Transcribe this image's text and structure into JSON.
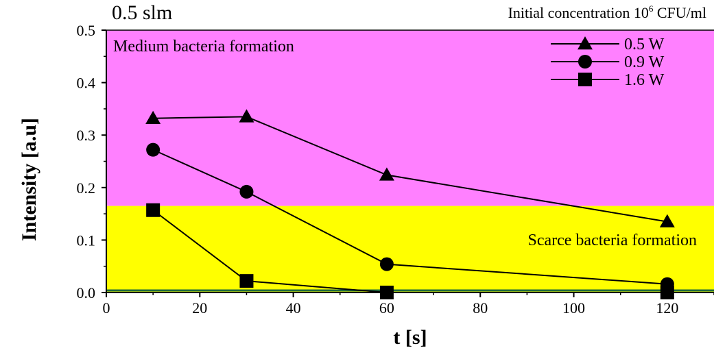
{
  "chart_data": {
    "type": "line",
    "corner_label": "0.5 slm",
    "title": "Initial concentration 10",
    "title_superscript": "6",
    "title_suffix": " CFU/ml",
    "xlabel": "t  [s]",
    "ylabel": "Intensity [a.u]",
    "xlim": [
      0,
      130
    ],
    "ylim": [
      0,
      0.5
    ],
    "xticks": [
      0,
      20,
      40,
      60,
      80,
      100,
      120
    ],
    "yticks": [
      0.0,
      0.1,
      0.2,
      0.3,
      0.4,
      0.5
    ],
    "ytick_labels": [
      "0.0",
      "0.1",
      "0.2",
      "0.3",
      "0.4",
      "0.5"
    ],
    "regions": [
      {
        "label": "Medium bacteria formation",
        "y_range": [
          0.165,
          0.5
        ],
        "color": "#ff80ff"
      },
      {
        "label": "Scarce bacteria formation",
        "y_range": [
          0.0,
          0.165
        ],
        "color": "#ffff00"
      }
    ],
    "legend_position": "top-right",
    "series": [
      {
        "name": "0.5 W",
        "marker": "triangle",
        "x": [
          10,
          30,
          60,
          120
        ],
        "y": [
          0.332,
          0.335,
          0.224,
          0.135
        ]
      },
      {
        "name": "0.9 W",
        "marker": "circle",
        "x": [
          10,
          30,
          60,
          120
        ],
        "y": [
          0.272,
          0.192,
          0.054,
          0.016
        ]
      },
      {
        "name": "1.6 W",
        "marker": "square",
        "x": [
          10,
          30,
          60,
          120
        ],
        "y": [
          0.157,
          0.022,
          0.0,
          0.0
        ]
      }
    ]
  }
}
